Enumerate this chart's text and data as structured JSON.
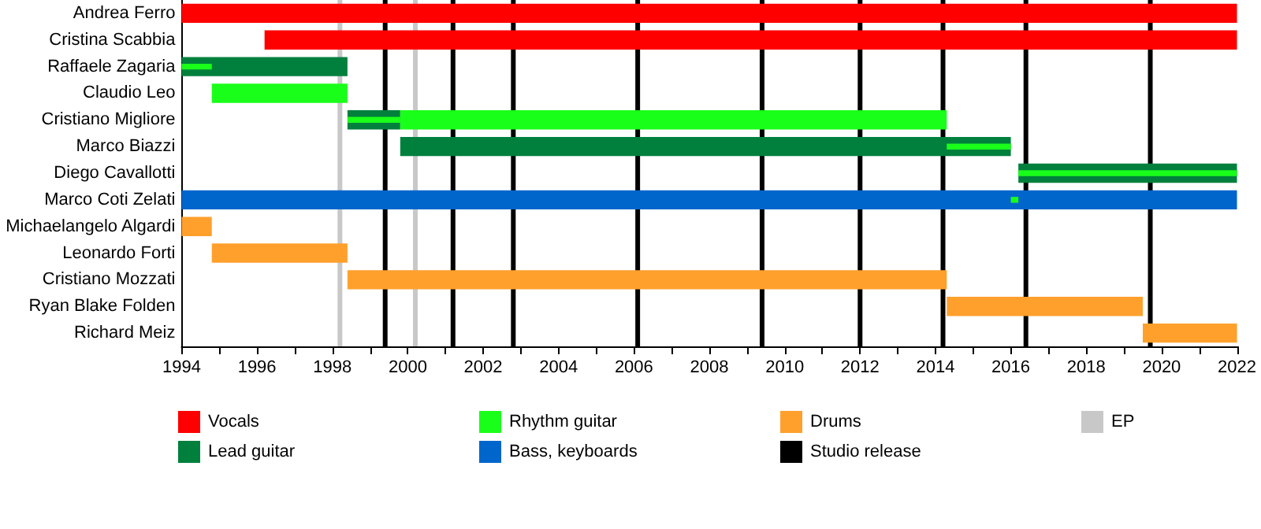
{
  "chart_data": {
    "type": "bar",
    "orientation": "horizontal",
    "categories": [
      "Andrea Ferro",
      "Cristina Scabbia",
      "Raffaele Zagaria",
      "Claudio Leo",
      "Cristiano Migliore",
      "Marco Biazzi",
      "Diego Cavallotti",
      "Marco Coti Zelati",
      "Michaelangelo Algardi",
      "Leonardo Forti",
      "Cristiano Mozzati",
      "Ryan Blake Folden",
      "Richard Meiz"
    ],
    "series": [
      {
        "name": "Vocals",
        "color": "#ff0000",
        "base": [
          1994,
          1996.2,
          null,
          null,
          null,
          null,
          null,
          null,
          null,
          null,
          null,
          null,
          null
        ],
        "values": [
          28,
          25.8,
          null,
          null,
          null,
          null,
          null,
          null,
          null,
          null,
          null,
          null,
          null
        ]
      },
      {
        "name": "Lead guitar",
        "color": "#00803c",
        "base": [
          null,
          null,
          1994,
          null,
          1998.4,
          1999.8,
          2016.2,
          null,
          null,
          null,
          null,
          null,
          null
        ],
        "values": [
          null,
          null,
          4.4,
          null,
          1.4,
          16.2,
          5.8,
          null,
          null,
          null,
          null,
          null,
          null
        ]
      },
      {
        "name": "Rhythm guitar",
        "color": "#1aff1a",
        "base": [
          null,
          null,
          null,
          1994.8,
          1999.8,
          null,
          null,
          null,
          null,
          null,
          null,
          null,
          null
        ],
        "values": [
          null,
          null,
          null,
          3.6,
          14.5,
          null,
          null,
          null,
          null,
          null,
          null,
          null,
          null
        ]
      },
      {
        "name": "Bass, keyboards",
        "color": "#0066cc",
        "base": [
          null,
          null,
          null,
          null,
          null,
          null,
          null,
          1994,
          null,
          null,
          null,
          null,
          null
        ],
        "values": [
          null,
          null,
          null,
          null,
          null,
          null,
          null,
          28,
          null,
          null,
          null,
          null,
          null
        ]
      },
      {
        "name": "Drums",
        "color": "#ffa02c",
        "base": [
          null,
          null,
          null,
          null,
          null,
          null,
          null,
          null,
          1994,
          1994.8,
          1998.4,
          2014.3,
          2019.5
        ],
        "values": [
          null,
          null,
          null,
          null,
          null,
          null,
          null,
          null,
          0.8,
          3.6,
          15.9,
          5.2,
          2.5
        ]
      },
      {
        "color": "#1aff1a",
        "base": [
          null,
          null,
          1994,
          null,
          1998.4,
          2014.3,
          2016.2,
          2016.0,
          null,
          null,
          null,
          null,
          null
        ],
        "values": [
          null,
          null,
          0.8,
          null,
          1.4,
          1.7,
          5.8,
          0.2,
          null,
          null,
          null,
          null,
          null
        ]
      }
    ],
    "ref_lines": [
      {
        "axis": "x",
        "value": 1999.4,
        "label": "Studio release",
        "color": "#000000"
      },
      {
        "axis": "x",
        "value": 2001.2,
        "color": "#000000"
      },
      {
        "axis": "x",
        "value": 2002.8,
        "color": "#000000"
      },
      {
        "axis": "x",
        "value": 2006.1,
        "color": "#000000"
      },
      {
        "axis": "x",
        "value": 2009.4,
        "color": "#000000"
      },
      {
        "axis": "x",
        "value": 2012.0,
        "color": "#000000"
      },
      {
        "axis": "x",
        "value": 2014.2,
        "color": "#000000"
      },
      {
        "axis": "x",
        "value": 2016.4,
        "color": "#000000"
      },
      {
        "axis": "x",
        "value": 2019.7,
        "color": "#000000"
      },
      {
        "axis": "x",
        "value": 1998.2,
        "label": "EP",
        "color": "#c8c8c8"
      },
      {
        "axis": "x",
        "value": 2000.2,
        "color": "#c8c8c8"
      }
    ],
    "xlim": [
      1994,
      2022
    ],
    "xticks": [
      1994,
      {
        "value": 1995,
        "label": null
      },
      1996,
      {
        "value": 1997,
        "label": null
      },
      1998,
      {
        "value": 1999,
        "label": null
      },
      2000,
      {
        "value": 2001,
        "label": null
      },
      2002,
      {
        "value": 2003,
        "label": null
      },
      2004,
      {
        "value": 2005,
        "label": null
      },
      2006,
      {
        "value": 2007,
        "label": null
      },
      2008,
      {
        "value": 2009,
        "label": null
      },
      2010,
      {
        "value": 2011,
        "label": null
      },
      2012,
      {
        "value": 2013,
        "label": null
      },
      2014,
      {
        "value": 2015,
        "label": null
      },
      2016,
      {
        "value": 2017,
        "label": null
      },
      2018,
      {
        "value": 2019,
        "label": null
      },
      2020,
      {
        "value": 2021,
        "label": null
      },
      2022
    ],
    "grid": false,
    "legend": "bottom"
  }
}
